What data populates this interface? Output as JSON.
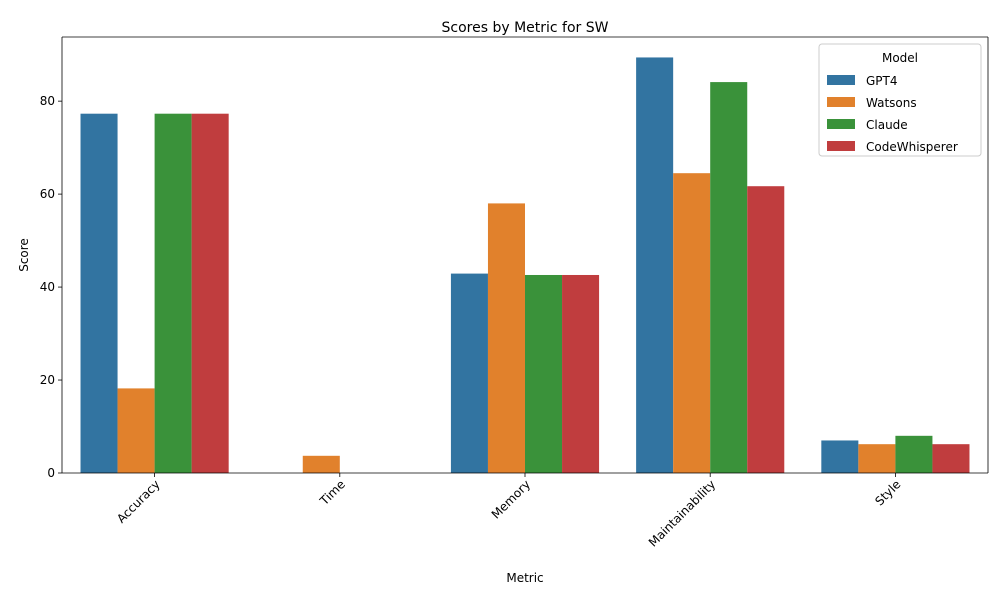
{
  "chart_data": {
    "type": "bar",
    "title": "Scores by Metric for SW",
    "xlabel": "Metric",
    "ylabel": "Score",
    "categories": [
      "Accuracy",
      "Time",
      "Memory",
      "Maintainability",
      "Style"
    ],
    "ylim": [
      0,
      93.8
    ],
    "yticks": [
      0,
      20,
      40,
      60,
      80
    ],
    "legend": {
      "title": "Model",
      "position": "top-right"
    },
    "series": [
      {
        "name": "GPT4",
        "color": "#3274a1",
        "values": [
          77.3,
          0,
          42.9,
          89.4,
          7.0
        ]
      },
      {
        "name": "Watsons",
        "color": "#e1812c",
        "values": [
          18.2,
          3.7,
          58.0,
          64.5,
          6.2
        ]
      },
      {
        "name": "Claude",
        "color": "#3a923a",
        "values": [
          77.3,
          0,
          42.6,
          84.1,
          8.0
        ]
      },
      {
        "name": "CodeWhisperer",
        "color": "#c03d3e",
        "values": [
          77.3,
          0,
          42.6,
          61.7,
          6.2
        ]
      }
    ],
    "grid": false
  }
}
